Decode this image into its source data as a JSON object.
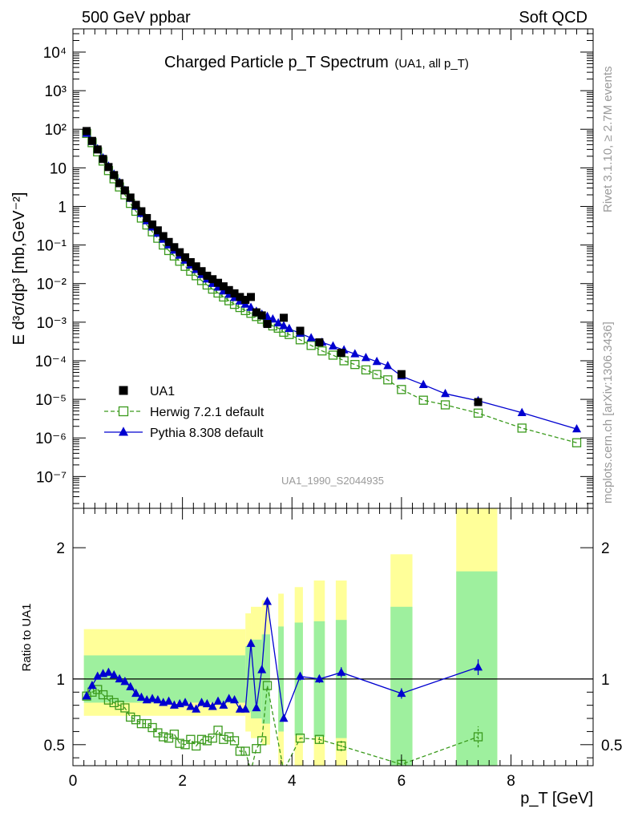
{
  "header": {
    "left": "500 GeV ppbar",
    "right": "Soft QCD"
  },
  "side_text": {
    "rivet": "Rivet 3.1.10, ≥ 2.7M events",
    "mcplots": "mcplots.cern.ch [arXiv:1306.3436]"
  },
  "colors": {
    "data": "#000000",
    "herwig": "#3a9a1c",
    "pythia": "#0000d0",
    "band_inner": "#9ef09e",
    "band_outer": "#ffff99",
    "watermark": "#9a9a9a"
  },
  "chart_data": [
    {
      "type": "scatter",
      "panel": "main",
      "title": "Charged Particle p_T Spectrum",
      "title_suffix": "(UA1, all p_T)",
      "ylabel": "E d³σ/dp³ [mb,GeV⁻²]",
      "xlabel": "",
      "yscale": "log",
      "xlim": [
        0,
        9.5
      ],
      "ylim": [
        1.5e-08,
        40000
      ],
      "y_ticks": [
        "10⁻⁷",
        "10⁻⁶",
        "10⁻⁵",
        "10⁻⁴",
        "10⁻³",
        "10⁻²",
        "10⁻¹",
        "1",
        "10",
        "10²",
        "10³",
        "10⁴"
      ],
      "watermark": "UA1_1990_S2044935",
      "legend_position": "bottom-left",
      "series": [
        {
          "name": "UA1",
          "style": "square-filled",
          "x": [
            0.25,
            0.35,
            0.45,
            0.55,
            0.65,
            0.75,
            0.85,
            0.95,
            1.05,
            1.15,
            1.25,
            1.35,
            1.45,
            1.55,
            1.65,
            1.75,
            1.85,
            1.95,
            2.05,
            2.15,
            2.25,
            2.35,
            2.45,
            2.55,
            2.65,
            2.75,
            2.85,
            2.95,
            3.05,
            3.15,
            3.25,
            3.35,
            3.45,
            3.55,
            3.85,
            4.15,
            4.5,
            4.9,
            6.0,
            7.4
          ],
          "y": [
            90,
            50,
            30,
            17,
            10.5,
            6.5,
            4.0,
            2.6,
            1.7,
            1.1,
            0.75,
            0.5,
            0.34,
            0.24,
            0.17,
            0.12,
            0.088,
            0.065,
            0.048,
            0.036,
            0.028,
            0.021,
            0.016,
            0.013,
            0.0105,
            0.0085,
            0.0068,
            0.0056,
            0.0045,
            0.0038,
            0.0045,
            0.0018,
            0.0015,
            0.0009,
            0.0013,
            0.0006,
            0.0003,
            0.00016,
            4.5e-05,
            8.5e-06
          ]
        },
        {
          "name": "Herwig 7.2.1 default",
          "style": "square-open-dashed",
          "x": [
            0.25,
            0.35,
            0.45,
            0.55,
            0.65,
            0.75,
            0.85,
            0.95,
            1.05,
            1.15,
            1.25,
            1.35,
            1.45,
            1.55,
            1.65,
            1.75,
            1.85,
            1.95,
            2.05,
            2.15,
            2.25,
            2.35,
            2.45,
            2.55,
            2.65,
            2.75,
            2.85,
            2.95,
            3.05,
            3.15,
            3.25,
            3.35,
            3.45,
            3.55,
            3.65,
            3.75,
            3.85,
            3.95,
            4.15,
            4.35,
            4.55,
            4.75,
            4.95,
            5.15,
            5.35,
            5.55,
            5.75,
            6.0,
            6.4,
            6.8,
            7.4,
            8.2,
            9.2
          ],
          "y": [
            78,
            45,
            26,
            15,
            8.5,
            5.2,
            3.2,
            2.0,
            1.2,
            0.75,
            0.5,
            0.33,
            0.22,
            0.15,
            0.1,
            0.072,
            0.052,
            0.038,
            0.028,
            0.021,
            0.016,
            0.012,
            0.0092,
            0.0072,
            0.0057,
            0.0045,
            0.0036,
            0.0029,
            0.0024,
            0.002,
            0.0017,
            0.0014,
            0.0012,
            0.001,
            0.0008,
            0.0007,
            0.00055,
            0.00048,
            0.00035,
            0.00025,
            0.00018,
            0.00014,
            0.0001,
            8e-05,
            5.8e-05,
            4.4e-05,
            3.2e-05,
            1.8e-05,
            9.5e-06,
            7.2e-06,
            4.4e-06,
            1.8e-06,
            7.5e-07
          ]
        },
        {
          "name": "Pythia 8.308 default",
          "style": "triangle-filled-solid",
          "x": [
            0.25,
            0.35,
            0.45,
            0.55,
            0.65,
            0.75,
            0.85,
            0.95,
            1.05,
            1.15,
            1.25,
            1.35,
            1.45,
            1.55,
            1.65,
            1.75,
            1.85,
            1.95,
            2.05,
            2.15,
            2.25,
            2.35,
            2.45,
            2.55,
            2.65,
            2.75,
            2.85,
            2.95,
            3.05,
            3.15,
            3.25,
            3.35,
            3.45,
            3.55,
            3.65,
            3.75,
            3.85,
            3.95,
            4.15,
            4.35,
            4.55,
            4.75,
            4.95,
            5.15,
            5.35,
            5.55,
            5.75,
            6.0,
            6.4,
            6.8,
            7.4,
            8.2,
            9.2
          ],
          "y": [
            78,
            48,
            31,
            18,
            11,
            6.8,
            4.2,
            2.6,
            1.6,
            1.0,
            0.65,
            0.42,
            0.29,
            0.2,
            0.14,
            0.1,
            0.073,
            0.054,
            0.04,
            0.03,
            0.023,
            0.017,
            0.013,
            0.01,
            0.008,
            0.0064,
            0.0052,
            0.0043,
            0.0035,
            0.0029,
            0.0024,
            0.0019,
            0.0016,
            0.0014,
            0.0012,
            0.00095,
            0.0008,
            0.00068,
            0.00051,
            0.00039,
            0.0003,
            0.00024,
            0.00019,
            0.00015,
            0.00012,
            9.5e-05,
            7.4e-05,
            4e-05,
            2.4e-05,
            1.4e-05,
            9.2e-06,
            4.5e-06,
            1.7e-06
          ]
        }
      ]
    },
    {
      "type": "line",
      "panel": "ratio",
      "ylabel": "Ratio to UA1",
      "xlabel": "p_T [GeV]",
      "xlim": [
        0,
        9.5
      ],
      "ylim": [
        0.34,
        2.3
      ],
      "x_ticks": [
        "0",
        "2",
        "4",
        "6",
        "8"
      ],
      "y_ticks": [
        "0.5",
        "1",
        "2"
      ],
      "reference_line": 1,
      "uncertainty_bands": {
        "x_edges": [
          [
            0.2,
            3.15
          ],
          [
            3.15,
            3.25
          ],
          [
            3.25,
            3.45
          ],
          [
            3.45,
            3.6
          ],
          [
            3.75,
            3.85
          ],
          [
            4.05,
            4.2
          ],
          [
            4.4,
            4.6
          ],
          [
            4.8,
            5.0
          ],
          [
            5.8,
            6.2
          ],
          [
            7.0,
            7.75
          ]
        ],
        "inner": [
          [
            0.82,
            1.18
          ],
          [
            0.75,
            1.25
          ],
          [
            0.7,
            1.3
          ],
          [
            0.66,
            1.34
          ],
          [
            0.6,
            1.4
          ],
          [
            0.57,
            1.43
          ],
          [
            0.56,
            1.44
          ],
          [
            0.55,
            1.45
          ],
          [
            0.2,
            1.55
          ],
          [
            0.0,
            1.82
          ]
        ],
        "outer": [
          [
            0.72,
            1.38
          ],
          [
            0.6,
            1.5
          ],
          [
            0.55,
            1.55
          ],
          [
            0.5,
            1.6
          ],
          [
            0.35,
            1.65
          ],
          [
            0.3,
            1.7
          ],
          [
            0.25,
            1.75
          ],
          [
            0.25,
            1.75
          ],
          [
            0.0,
            1.95
          ],
          [
            0.0,
            2.4
          ]
        ]
      },
      "series": [
        {
          "name": "Herwig 7.2.1 default",
          "x": [
            0.25,
            0.35,
            0.45,
            0.55,
            0.65,
            0.75,
            0.85,
            0.95,
            1.05,
            1.15,
            1.25,
            1.35,
            1.45,
            1.55,
            1.65,
            1.75,
            1.85,
            1.95,
            2.05,
            2.15,
            2.25,
            2.35,
            2.45,
            2.55,
            2.65,
            2.75,
            2.85,
            2.95,
            3.05,
            3.15,
            3.25,
            3.35,
            3.45,
            3.55,
            3.85,
            4.15,
            4.5,
            4.9,
            6.0,
            7.4
          ],
          "y": [
            0.87,
            0.9,
            0.92,
            0.88,
            0.84,
            0.82,
            0.8,
            0.78,
            0.71,
            0.69,
            0.66,
            0.66,
            0.63,
            0.59,
            0.56,
            0.55,
            0.58,
            0.51,
            0.5,
            0.54,
            0.49,
            0.54,
            0.53,
            0.55,
            0.61,
            0.54,
            0.56,
            0.53,
            0.45,
            0.45,
            0.3,
            0.47,
            0.53,
            0.95,
            0.3,
            0.55,
            0.54,
            0.49,
            0.35,
            0.56
          ],
          "yerr": [
            0.01,
            0.01,
            0.01,
            0.01,
            0.01,
            0.01,
            0.01,
            0.01,
            0.01,
            0.01,
            0.01,
            0.01,
            0.01,
            0.01,
            0.01,
            0.01,
            0.01,
            0.01,
            0.01,
            0.01,
            0.01,
            0.01,
            0.01,
            0.01,
            0.01,
            0.01,
            0.01,
            0.01,
            0.01,
            0.01,
            0.01,
            0.01,
            0.01,
            0.01,
            0.01,
            0.01,
            0.03,
            0.04,
            0.05,
            0.08
          ]
        },
        {
          "name": "Pythia 8.308 default",
          "x": [
            0.25,
            0.35,
            0.45,
            0.55,
            0.65,
            0.75,
            0.85,
            0.95,
            1.05,
            1.15,
            1.25,
            1.35,
            1.45,
            1.55,
            1.65,
            1.75,
            1.85,
            1.95,
            2.05,
            2.15,
            2.25,
            2.35,
            2.45,
            2.55,
            2.65,
            2.75,
            2.85,
            2.95,
            3.05,
            3.15,
            3.25,
            3.35,
            3.45,
            3.55,
            3.85,
            4.15,
            4.5,
            4.9,
            6.0,
            7.4
          ],
          "y": [
            0.87,
            0.95,
            1.02,
            1.04,
            1.05,
            1.03,
            1.0,
            0.98,
            0.94,
            0.89,
            0.86,
            0.84,
            0.85,
            0.84,
            0.82,
            0.83,
            0.8,
            0.81,
            0.82,
            0.79,
            0.77,
            0.82,
            0.81,
            0.79,
            0.83,
            0.8,
            0.85,
            0.84,
            0.77,
            0.77,
            1.27,
            0.78,
            1.07,
            1.59,
            0.7,
            1.02,
            1.0,
            1.05,
            0.89,
            1.09
          ],
          "yerr": [
            0.01,
            0.01,
            0.01,
            0.01,
            0.01,
            0.01,
            0.01,
            0.01,
            0.01,
            0.01,
            0.01,
            0.01,
            0.01,
            0.01,
            0.01,
            0.01,
            0.01,
            0.01,
            0.01,
            0.01,
            0.01,
            0.01,
            0.01,
            0.01,
            0.01,
            0.01,
            0.01,
            0.01,
            0.01,
            0.01,
            0.01,
            0.01,
            0.01,
            0.01,
            0.02,
            0.03,
            0.03,
            0.04,
            0.04,
            0.06
          ]
        }
      ]
    }
  ]
}
